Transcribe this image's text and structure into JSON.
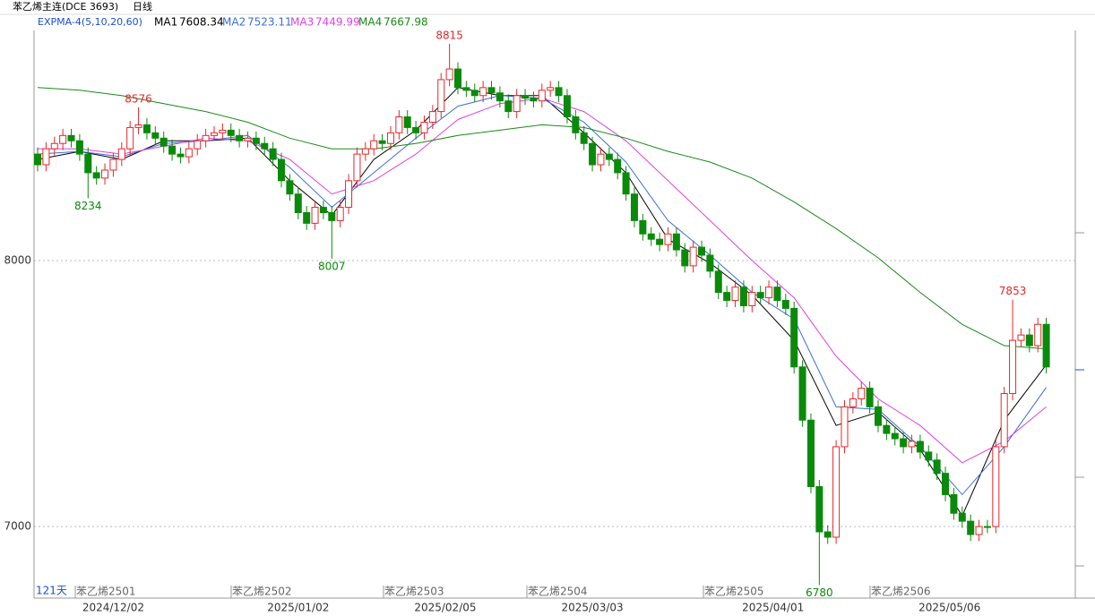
{
  "chart_data": {
    "type": "candlestick",
    "title": "苯乙烯主连(DCE 3693)",
    "period": "日线",
    "indicator": "EXPMA-4(5,10,20,60)",
    "count_label": "121天",
    "up_color": "#e8262b",
    "down_color": "#0a8a0a",
    "ylim": [
      6731,
      8912
    ],
    "yticks": [
      7000,
      8000
    ],
    "grid": true,
    "x_labels": [
      "2024/12/02",
      "2025/01/02",
      "2025/02/05",
      "2025/03/03",
      "2025/04/01",
      "2025/05/06"
    ],
    "contract_labels": [
      "苯乙烯2501",
      "苯乙烯2502",
      "苯乙烯2503",
      "苯乙烯2504",
      "苯乙烯2505",
      "苯乙烯2506"
    ],
    "open": [
      8400,
      8360,
      8420,
      8440,
      8470,
      8450,
      8400,
      8330,
      8310,
      8340,
      8380,
      8420,
      8500,
      8510,
      8480,
      8460,
      8430,
      8400,
      8390,
      8420,
      8450,
      8470,
      8480,
      8490,
      8470,
      8450,
      8460,
      8440,
      8420,
      8380,
      8300,
      8250,
      8180,
      8140,
      8200,
      8180,
      8150,
      8200,
      8300,
      8400,
      8420,
      8450,
      8440,
      8480,
      8540,
      8500,
      8480,
      8520,
      8560,
      8680,
      8720,
      8650,
      8640,
      8620,
      8650,
      8630,
      8600,
      8560,
      8620,
      8610,
      8600,
      8640,
      8650,
      8620,
      8540,
      8480,
      8440,
      8360,
      8400,
      8380,
      8330,
      8250,
      8150,
      8100,
      8080,
      8060,
      8100,
      8040,
      7980,
      8050,
      8020,
      7960,
      7880,
      7850,
      7900,
      7830,
      7880,
      7860,
      7900,
      7850,
      7820,
      7600,
      7400,
      7150,
      6980,
      6960,
      7300,
      7450,
      7480,
      7520,
      7450,
      7380,
      7350,
      7330,
      7300,
      7320,
      7280,
      7250,
      7200,
      7120,
      7050,
      7020,
      6970,
      7000,
      7000,
      7300,
      7500,
      7700,
      7720,
      7680,
      7760
    ],
    "high": [
      8425,
      8445,
      8465,
      8495,
      8495,
      8475,
      8425,
      8355,
      8365,
      8405,
      8445,
      8525,
      8576,
      8535,
      8505,
      8485,
      8455,
      8425,
      8445,
      8475,
      8495,
      8505,
      8515,
      8515,
      8495,
      8485,
      8485,
      8465,
      8445,
      8405,
      8325,
      8275,
      8205,
      8225,
      8225,
      8205,
      8225,
      8325,
      8425,
      8445,
      8475,
      8475,
      8505,
      8565,
      8565,
      8525,
      8545,
      8585,
      8705,
      8815,
      8745,
      8675,
      8665,
      8675,
      8675,
      8655,
      8625,
      8645,
      8645,
      8635,
      8665,
      8675,
      8675,
      8645,
      8565,
      8505,
      8465,
      8425,
      8425,
      8405,
      8355,
      8275,
      8175,
      8125,
      8105,
      8125,
      8125,
      8065,
      8075,
      8075,
      8045,
      7985,
      7905,
      7925,
      7925,
      7905,
      7905,
      7925,
      7925,
      7875,
      7845,
      7625,
      7425,
      7175,
      7005,
      7325,
      7475,
      7505,
      7545,
      7545,
      7475,
      7405,
      7375,
      7355,
      7345,
      7345,
      7305,
      7275,
      7225,
      7145,
      7075,
      7045,
      7025,
      7025,
      7325,
      7525,
      7853,
      7745,
      7745,
      7785,
      7785
    ],
    "low": [
      8335,
      8335,
      8395,
      8415,
      8425,
      8375,
      8234,
      8285,
      8285,
      8315,
      8355,
      8395,
      8475,
      8455,
      8435,
      8405,
      8375,
      8365,
      8365,
      8395,
      8425,
      8455,
      8455,
      8445,
      8425,
      8425,
      8415,
      8395,
      8355,
      8275,
      8225,
      8155,
      8115,
      8115,
      8155,
      8007,
      8125,
      8175,
      8275,
      8375,
      8395,
      8415,
      8415,
      8455,
      8475,
      8455,
      8455,
      8495,
      8535,
      8655,
      8625,
      8615,
      8595,
      8595,
      8605,
      8575,
      8535,
      8535,
      8585,
      8575,
      8575,
      8615,
      8595,
      8515,
      8455,
      8415,
      8335,
      8335,
      8355,
      8305,
      8225,
      8125,
      8075,
      8055,
      8035,
      8035,
      8015,
      7955,
      7955,
      7995,
      7935,
      7855,
      7825,
      7825,
      7805,
      7805,
      7835,
      7835,
      7825,
      7795,
      7575,
      7375,
      7125,
      6780,
      6935,
      6935,
      7275,
      7425,
      7455,
      7425,
      7355,
      7325,
      7305,
      7275,
      7275,
      7255,
      7225,
      7175,
      7095,
      7025,
      6995,
      6945,
      6945,
      6975,
      6975,
      7275,
      7475,
      7675,
      7655,
      7655,
      7575
    ],
    "close": [
      8360,
      8420,
      8440,
      8470,
      8450,
      8400,
      8330,
      8310,
      8340,
      8380,
      8420,
      8500,
      8510,
      8480,
      8460,
      8430,
      8400,
      8390,
      8420,
      8450,
      8470,
      8480,
      8490,
      8470,
      8450,
      8460,
      8440,
      8420,
      8380,
      8300,
      8250,
      8180,
      8140,
      8200,
      8180,
      8150,
      8200,
      8300,
      8400,
      8420,
      8450,
      8440,
      8480,
      8540,
      8500,
      8480,
      8520,
      8560,
      8680,
      8720,
      8650,
      8640,
      8620,
      8650,
      8630,
      8600,
      8560,
      8620,
      8610,
      8600,
      8640,
      8650,
      8620,
      8540,
      8480,
      8440,
      8360,
      8400,
      8380,
      8330,
      8250,
      8150,
      8100,
      8080,
      8060,
      8100,
      8040,
      7980,
      8050,
      8020,
      7960,
      7880,
      7850,
      7900,
      7830,
      7880,
      7860,
      7900,
      7850,
      7820,
      7600,
      7400,
      7150,
      6980,
      6960,
      7300,
      7450,
      7480,
      7520,
      7450,
      7380,
      7350,
      7330,
      7300,
      7320,
      7280,
      7250,
      7200,
      7120,
      7050,
      7020,
      6970,
      7000,
      7000,
      7300,
      7500,
      7700,
      7720,
      7680,
      7760,
      7600
    ],
    "series": [
      {
        "name": "MA1",
        "latest": 7608.34,
        "color": "#000000",
        "x": [
          0,
          5,
          10,
          15,
          20,
          25,
          30,
          35,
          40,
          45,
          50,
          55,
          60,
          65,
          70,
          75,
          80,
          85,
          90,
          95,
          100,
          105,
          110,
          115,
          120
        ],
        "values": [
          8380,
          8410,
          8380,
          8450,
          8450,
          8460,
          8300,
          8170,
          8380,
          8490,
          8650,
          8620,
          8620,
          8480,
          8330,
          8080,
          7990,
          7870,
          7700,
          7380,
          7430,
          7290,
          7040,
          7400,
          7608
        ]
      },
      {
        "name": "MA2",
        "latest": 7523.11,
        "color": "#3b6fd8",
        "x": [
          0,
          5,
          10,
          15,
          20,
          25,
          30,
          35,
          40,
          45,
          50,
          55,
          60,
          65,
          70,
          75,
          80,
          85,
          90,
          95,
          100,
          105,
          110,
          115,
          120
        ],
        "values": [
          8400,
          8410,
          8390,
          8440,
          8450,
          8470,
          8350,
          8200,
          8330,
          8460,
          8580,
          8620,
          8610,
          8520,
          8370,
          8150,
          8020,
          7880,
          7780,
          7450,
          7440,
          7300,
          7120,
          7300,
          7523
        ]
      },
      {
        "name": "MA3",
        "latest": 7449.99,
        "color": "#e040e0",
        "x": [
          0,
          5,
          10,
          15,
          20,
          25,
          30,
          35,
          40,
          45,
          50,
          55,
          60,
          65,
          70,
          75,
          80,
          85,
          90,
          95,
          100,
          105,
          110,
          115,
          120
        ],
        "values": [
          8420,
          8420,
          8400,
          8430,
          8460,
          8450,
          8380,
          8250,
          8300,
          8400,
          8530,
          8590,
          8610,
          8560,
          8450,
          8300,
          8150,
          8000,
          7860,
          7640,
          7480,
          7380,
          7240,
          7320,
          7450
        ]
      },
      {
        "name": "MA4",
        "latest": 7667.98,
        "color": "#1a8a1a",
        "x": [
          0,
          5,
          10,
          15,
          20,
          25,
          30,
          35,
          40,
          45,
          50,
          55,
          60,
          65,
          70,
          75,
          80,
          85,
          90,
          95,
          100,
          105,
          110,
          115,
          120
        ],
        "values": [
          8650,
          8640,
          8620,
          8590,
          8560,
          8520,
          8460,
          8420,
          8420,
          8440,
          8470,
          8490,
          8510,
          8500,
          8460,
          8410,
          8370,
          8310,
          8220,
          8120,
          8010,
          7880,
          7760,
          7680,
          7668
        ]
      }
    ]
  }
}
